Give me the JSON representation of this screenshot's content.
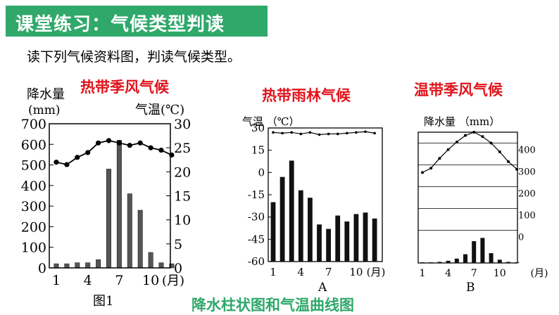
{
  "header": {
    "title": "课堂练习：气候类型判读",
    "instruction": "读下列气候资料图，判读气候类型。"
  },
  "colors": {
    "banner": "#2fa86a",
    "title_red": "#e0141c",
    "caption_green": "#2fa86a"
  },
  "annotations": {
    "chart1_type": "热带季风气候",
    "chartA_type": "热带雨林气候",
    "chartB_type": "温带季风气候",
    "caption": "降水柱状图和气温曲线图"
  },
  "chart1_text": {
    "precip_label": "降水量",
    "precip_unit": "(mm)",
    "temp_label": "气温(℃)",
    "month_unit": "(月)",
    "fig_label": "图1"
  },
  "chartA_text": {
    "temp_label": "气温 （℃）",
    "month_unit": "(月)",
    "fig_label": "A"
  },
  "chartB_text": {
    "precip_label": "降水量 （mm）",
    "month_unit": "(月)",
    "fig_label": "B"
  },
  "chart_data": [
    {
      "type": "bar",
      "name": "图1",
      "x_ticks": [
        "1",
        "4",
        "7",
        "10"
      ],
      "precip_ticks": [
        "700",
        "600",
        "500",
        "400",
        "300",
        "200",
        "100",
        "0"
      ],
      "temp_ticks": [
        "30",
        "25",
        "20",
        "15",
        "10",
        "5",
        "0"
      ],
      "ylim_precip": [
        0,
        700
      ],
      "ylim_temp": [
        0,
        30
      ],
      "months": [
        1,
        2,
        3,
        4,
        5,
        6,
        7,
        8,
        9,
        10,
        11,
        12
      ],
      "series": [
        {
          "kind": "bar",
          "values": [
            20,
            20,
            25,
            25,
            40,
            480,
            620,
            360,
            280,
            75,
            25,
            20
          ]
        },
        {
          "kind": "line",
          "values": [
            22,
            21.5,
            23,
            24,
            26,
            26.5,
            26,
            25.5,
            26,
            25,
            24.5,
            23.5
          ]
        }
      ]
    },
    {
      "type": "bar",
      "name": "A",
      "x_ticks": [
        "1",
        "4",
        "7",
        "10",
        "(月)"
      ],
      "temp_ticks": [
        "30",
        "15",
        "0",
        "-15",
        "-30",
        "-45",
        "-60"
      ],
      "ylim_temp": [
        -60,
        30
      ],
      "months": [
        1,
        2,
        3,
        4,
        5,
        6,
        7,
        8,
        9,
        10,
        11,
        12
      ],
      "series": [
        {
          "kind": "bar",
          "values": [
            -20,
            -3,
            8,
            -12,
            -17,
            -35,
            -38,
            -29,
            -33,
            -28,
            -27,
            -31
          ]
        },
        {
          "kind": "line",
          "values": [
            27,
            26.5,
            27,
            26,
            27,
            25.5,
            26,
            26,
            26.5,
            27,
            27.5,
            26.5
          ]
        }
      ]
    },
    {
      "type": "bar",
      "name": "B",
      "x_ticks": [
        "1",
        "4",
        "7",
        "10",
        "(月)"
      ],
      "precip_ticks": [
        "400",
        "300",
        "200",
        "100",
        "0"
      ],
      "ylim_precip": [
        -150,
        450
      ],
      "months": [
        1,
        2,
        3,
        4,
        5,
        6,
        7,
        8,
        9,
        10,
        11,
        12
      ],
      "series": [
        {
          "kind": "bar",
          "values": [
            -147,
            -147,
            -145,
            -140,
            -130,
            -110,
            -50,
            -35,
            -105,
            -135,
            -145,
            -147
          ]
        },
        {
          "kind": "line",
          "values": [
            265,
            285,
            330,
            370,
            405,
            435,
            450,
            430,
            400,
            360,
            315,
            280
          ]
        }
      ]
    }
  ]
}
